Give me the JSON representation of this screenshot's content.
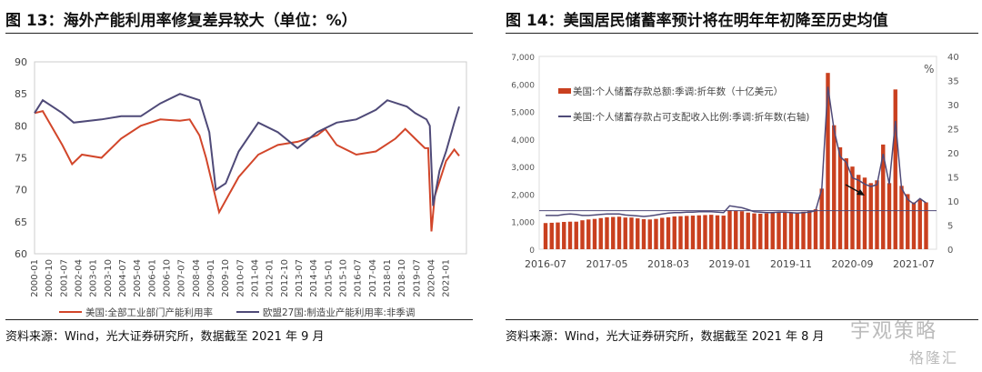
{
  "left": {
    "title": "图 13：海外产能利用率修复差异较大（单位：%）",
    "source": "资料来源：Wind，光大证券研究所，数据截至 2021 年 9 月",
    "chart_data": {
      "type": "line",
      "ylim": [
        60,
        90
      ],
      "yticks": [
        "60",
        "65",
        "70",
        "75",
        "80",
        "85",
        "90"
      ],
      "xticks": [
        "2000-01",
        "2000-10",
        "2001-07",
        "2002-04",
        "2003-01",
        "2003-10",
        "2004-07",
        "2005-04",
        "2006-01",
        "2006-10",
        "2007-07",
        "2008-04",
        "2009-01",
        "2009-10",
        "2010-07",
        "2011-04",
        "2012-01",
        "2012-10",
        "2013-07",
        "2014-04",
        "2015-01",
        "2015-10",
        "2016-07",
        "2017-04",
        "2018-01",
        "2018-10",
        "2019-07",
        "2020-04",
        "2021-01"
      ],
      "legend_position": "bottom",
      "series": [
        {
          "name": "美国:全部工业部门产能利用率",
          "color": "#d2462a",
          "points": [
            [
              "2000-01",
              82
            ],
            [
              "2000-06",
              82.3
            ],
            [
              "2001-06",
              77
            ],
            [
              "2001-12",
              74
            ],
            [
              "2002-06",
              75.5
            ],
            [
              "2003-06",
              75
            ],
            [
              "2004-06",
              78
            ],
            [
              "2005-06",
              80
            ],
            [
              "2006-06",
              81
            ],
            [
              "2007-06",
              80.8
            ],
            [
              "2007-12",
              81
            ],
            [
              "2008-06",
              78.5
            ],
            [
              "2008-10",
              75
            ],
            [
              "2009-06",
              66.5
            ],
            [
              "2010-06",
              72
            ],
            [
              "2011-06",
              75.5
            ],
            [
              "2012-06",
              77
            ],
            [
              "2013-06",
              77.5
            ],
            [
              "2014-06",
              78.5
            ],
            [
              "2014-11",
              79.5
            ],
            [
              "2015-06",
              77
            ],
            [
              "2016-06",
              75.5
            ],
            [
              "2017-06",
              76
            ],
            [
              "2018-06",
              78
            ],
            [
              "2018-12",
              79.5
            ],
            [
              "2019-06",
              78
            ],
            [
              "2019-12",
              76.5
            ],
            [
              "2020-02",
              76.5
            ],
            [
              "2020-04",
              63.5
            ],
            [
              "2020-06",
              69
            ],
            [
              "2021-01",
              74.5
            ],
            [
              "2021-06",
              76.3
            ],
            [
              "2021-09",
              75.3
            ]
          ]
        },
        {
          "name": "欧盟27国:制造业产能利用率:非季调",
          "color": "#4f4a78",
          "points": [
            [
              "2000-01",
              82
            ],
            [
              "2000-06",
              84
            ],
            [
              "2001-06",
              82
            ],
            [
              "2002-01",
              80.5
            ],
            [
              "2003-06",
              81
            ],
            [
              "2004-06",
              81.5
            ],
            [
              "2005-06",
              81.5
            ],
            [
              "2006-06",
              83.5
            ],
            [
              "2007-06",
              85
            ],
            [
              "2008-06",
              84
            ],
            [
              "2008-12",
              79
            ],
            [
              "2009-04",
              70
            ],
            [
              "2009-10",
              71
            ],
            [
              "2010-06",
              76
            ],
            [
              "2011-06",
              80.5
            ],
            [
              "2012-06",
              79
            ],
            [
              "2013-06",
              76.5
            ],
            [
              "2014-06",
              79
            ],
            [
              "2015-06",
              80.5
            ],
            [
              "2016-06",
              81
            ],
            [
              "2017-06",
              82.5
            ],
            [
              "2018-01",
              84
            ],
            [
              "2019-01",
              83
            ],
            [
              "2019-06",
              82
            ],
            [
              "2020-01",
              81
            ],
            [
              "2020-03",
              80
            ],
            [
              "2020-05",
              67.5
            ],
            [
              "2020-09",
              73
            ],
            [
              "2021-01",
              76
            ],
            [
              "2021-06",
              80.5
            ],
            [
              "2021-09",
              83
            ]
          ]
        }
      ]
    }
  },
  "right": {
    "title": "图 14：美国居民储蓄率预计将在明年年初降至历史均值",
    "source": "资料来源：Wind，光大证券研究所，数据截至 2021 年 8 月",
    "chart_data": {
      "type": "bar+line",
      "start": "2016-07",
      "xticks": [
        "2016-07",
        "2017-05",
        "2018-03",
        "2019-01",
        "2019-11",
        "2020-09",
        "2021-07"
      ],
      "y_left": {
        "lim": [
          0,
          7000
        ],
        "ticks": [
          "0",
          "1,000",
          "2,000",
          "3,000",
          "4,000",
          "5,000",
          "6,000",
          "7,000"
        ]
      },
      "y_right": {
        "lim": [
          0,
          40
        ],
        "ticks": [
          "0",
          "5",
          "10",
          "15",
          "20",
          "25",
          "30",
          "35",
          "40"
        ],
        "unit": "%"
      },
      "reference_line_left": 1400,
      "legend_position": "top-left",
      "bars": {
        "name": "美国:个人储蓄存款总额:季调:折年数（十亿美元）",
        "color": "#c9401f",
        "values": [
          950,
          960,
          970,
          990,
          1000,
          1000,
          1050,
          1080,
          1100,
          1130,
          1160,
          1170,
          1180,
          1150,
          1150,
          1120,
          1090,
          1080,
          1100,
          1140,
          1160,
          1190,
          1200,
          1210,
          1220,
          1230,
          1240,
          1250,
          1230,
          1220,
          1420,
          1400,
          1380,
          1330,
          1300,
          1290,
          1300,
          1330,
          1350,
          1340,
          1320,
          1300,
          1360,
          1400,
          1450,
          2200,
          6400,
          4500,
          3700,
          3300,
          3000,
          2700,
          2600,
          2400,
          2500,
          3800,
          2400,
          5800,
          2300,
          2000,
          1700,
          1800,
          1700
        ]
      },
      "line": {
        "name": "美国:个人储蓄存款占可支配收入比例:季调:折年数(右轴)",
        "color": "#4f4a78",
        "values": [
          7,
          7,
          7,
          7.2,
          7.3,
          7.2,
          7,
          7,
          7.1,
          7.2,
          7.3,
          7.3,
          7.3,
          7.1,
          7,
          6.9,
          6.8,
          6.9,
          7.1,
          7.3,
          7.5,
          7.6,
          7.6,
          7.7,
          7.7,
          7.8,
          7.8,
          7.8,
          7.7,
          7.6,
          9,
          8.8,
          8.6,
          8.2,
          7.8,
          7.7,
          7.6,
          7.6,
          7.7,
          7.7,
          7.6,
          7.5,
          7.6,
          7.7,
          8,
          12.5,
          33.7,
          24.8,
          19.2,
          18,
          14.8,
          14.3,
          13.5,
          13,
          13.4,
          19.8,
          13.5,
          26.6,
          12.7,
          10.3,
          9.4,
          10.5,
          9.6
        ]
      }
    }
  },
  "watermarks": [
    "宇观策略",
    "格隆汇"
  ]
}
